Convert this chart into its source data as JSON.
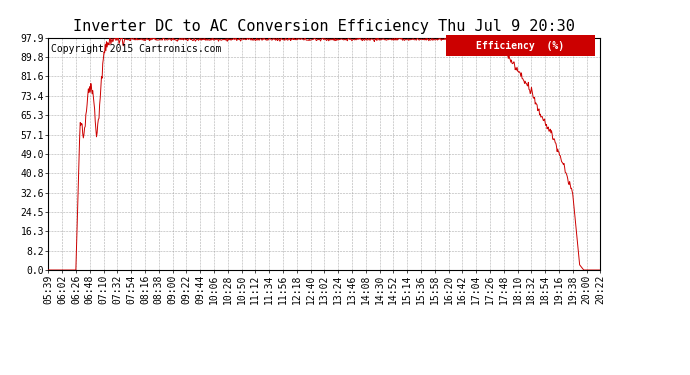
{
  "title": "Inverter DC to AC Conversion Efficiency Thu Jul 9 20:30",
  "copyright": "Copyright 2015 Cartronics.com",
  "legend_label": "Efficiency  (%)",
  "legend_bg": "#cc0000",
  "legend_text_color": "#ffffff",
  "line_color": "#cc0000",
  "bg_color": "#ffffff",
  "grid_color": "#999999",
  "yticks": [
    0.0,
    8.2,
    16.3,
    24.5,
    32.6,
    40.8,
    49.0,
    57.1,
    65.3,
    73.4,
    81.6,
    89.8,
    97.9
  ],
  "ylim": [
    0.0,
    97.9
  ],
  "title_fontsize": 11,
  "tick_fontsize": 7,
  "copyright_fontsize": 7,
  "xtick_labels": [
    "05:39",
    "06:02",
    "06:26",
    "06:48",
    "07:10",
    "07:32",
    "07:54",
    "08:16",
    "08:38",
    "09:00",
    "09:22",
    "09:44",
    "10:06",
    "10:28",
    "10:50",
    "11:12",
    "11:34",
    "11:56",
    "12:18",
    "12:40",
    "13:02",
    "13:24",
    "13:46",
    "14:08",
    "14:30",
    "14:52",
    "15:14",
    "15:36",
    "15:58",
    "16:20",
    "16:42",
    "17:04",
    "17:26",
    "17:48",
    "18:10",
    "18:32",
    "18:54",
    "19:16",
    "19:38",
    "20:00",
    "20:22"
  ]
}
